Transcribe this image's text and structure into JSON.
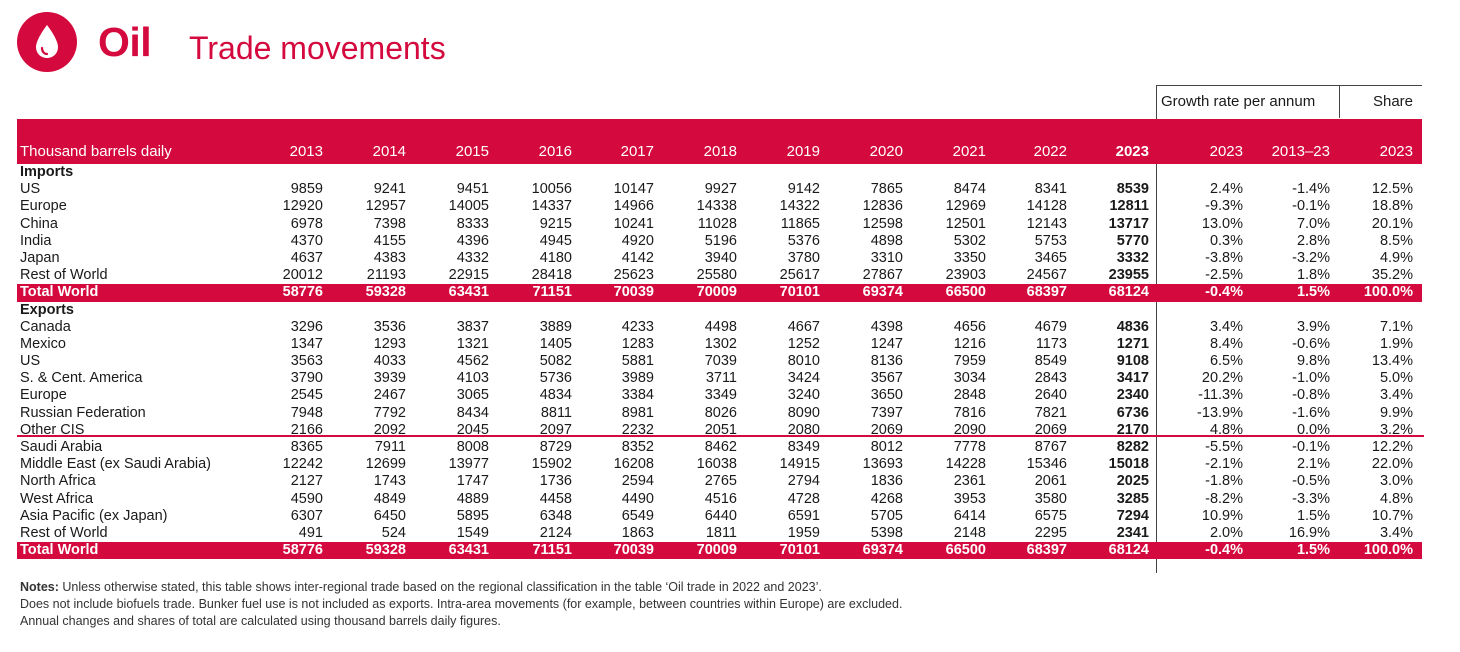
{
  "header": {
    "title": "Oil",
    "subtitle": "Trade movements",
    "logo_icon": "oil-drop-icon",
    "accent": "#d4093d"
  },
  "group_headers": {
    "growth": "Growth rate per annum",
    "share": "Share"
  },
  "columns": {
    "label": "Thousand barrels daily",
    "years": [
      "2013",
      "2014",
      "2015",
      "2016",
      "2017",
      "2018",
      "2019",
      "2020",
      "2021",
      "2022",
      "2023"
    ],
    "growth": [
      "2023",
      "2013–23"
    ],
    "share": [
      "2023"
    ]
  },
  "imports": {
    "title": "Imports",
    "rows": [
      {
        "name": "US",
        "values": [
          "9859",
          "9241",
          "9451",
          "10056",
          "10147",
          "9927",
          "9142",
          "7865",
          "8474",
          "8341",
          "8539"
        ],
        "g1": "2.4%",
        "g2": "-1.4%",
        "share": "12.5%"
      },
      {
        "name": "Europe",
        "values": [
          "12920",
          "12957",
          "14005",
          "14337",
          "14966",
          "14338",
          "14322",
          "12836",
          "12969",
          "14128",
          "12811"
        ],
        "g1": "-9.3%",
        "g2": "-0.1%",
        "share": "18.8%"
      },
      {
        "name": "China",
        "values": [
          "6978",
          "7398",
          "8333",
          "9215",
          "10241",
          "11028",
          "11865",
          "12598",
          "12501",
          "12143",
          "13717"
        ],
        "g1": "13.0%",
        "g2": "7.0%",
        "share": "20.1%"
      },
      {
        "name": "India",
        "values": [
          "4370",
          "4155",
          "4396",
          "4945",
          "4920",
          "5196",
          "5376",
          "4898",
          "5302",
          "5753",
          "5770"
        ],
        "g1": "0.3%",
        "g2": "2.8%",
        "share": "8.5%"
      },
      {
        "name": "Japan",
        "values": [
          "4637",
          "4383",
          "4332",
          "4180",
          "4142",
          "3940",
          "3780",
          "3310",
          "3350",
          "3465",
          "3332"
        ],
        "g1": "-3.8%",
        "g2": "-3.2%",
        "share": "4.9%"
      },
      {
        "name": "Rest of World",
        "values": [
          "20012",
          "21193",
          "22915",
          "28418",
          "25623",
          "25580",
          "25617",
          "27867",
          "23903",
          "24567",
          "23955"
        ],
        "g1": "-2.5%",
        "g2": "1.8%",
        "share": "35.2%"
      }
    ],
    "total": {
      "name": "Total World",
      "values": [
        "58776",
        "59328",
        "63431",
        "71151",
        "70039",
        "70009",
        "70101",
        "69374",
        "66500",
        "68397",
        "68124"
      ],
      "g1": "-0.4%",
      "g2": "1.5%",
      "share": "100.0%"
    }
  },
  "exports": {
    "title": "Exports",
    "rows": [
      {
        "name": "Canada",
        "values": [
          "3296",
          "3536",
          "3837",
          "3889",
          "4233",
          "4498",
          "4667",
          "4398",
          "4656",
          "4679",
          "4836"
        ],
        "g1": "3.4%",
        "g2": "3.9%",
        "share": "7.1%"
      },
      {
        "name": "Mexico",
        "values": [
          "1347",
          "1293",
          "1321",
          "1405",
          "1283",
          "1302",
          "1252",
          "1247",
          "1216",
          "1173",
          "1271"
        ],
        "g1": "8.4%",
        "g2": "-0.6%",
        "share": "1.9%"
      },
      {
        "name": "US",
        "values": [
          "3563",
          "4033",
          "4562",
          "5082",
          "5881",
          "7039",
          "8010",
          "8136",
          "7959",
          "8549",
          "9108"
        ],
        "g1": "6.5%",
        "g2": "9.8%",
        "share": "13.4%"
      },
      {
        "name": "S. & Cent. America",
        "values": [
          "3790",
          "3939",
          "4103",
          "5736",
          "3989",
          "3711",
          "3424",
          "3567",
          "3034",
          "2843",
          "3417"
        ],
        "g1": "20.2%",
        "g2": "-1.0%",
        "share": "5.0%"
      },
      {
        "name": "Europe",
        "values": [
          "2545",
          "2467",
          "3065",
          "4834",
          "3384",
          "3349",
          "3240",
          "3650",
          "2848",
          "2640",
          "2340"
        ],
        "g1": "-11.3%",
        "g2": "-0.8%",
        "share": "3.4%"
      },
      {
        "name": "Russian Federation",
        "values": [
          "7948",
          "7792",
          "8434",
          "8811",
          "8981",
          "8026",
          "8090",
          "7397",
          "7816",
          "7821",
          "6736"
        ],
        "g1": "-13.9%",
        "g2": "-1.6%",
        "share": "9.9%"
      },
      {
        "name": "Other CIS",
        "values": [
          "2166",
          "2092",
          "2045",
          "2097",
          "2232",
          "2051",
          "2080",
          "2069",
          "2090",
          "2069",
          "2170"
        ],
        "g1": "4.8%",
        "g2": "0.0%",
        "share": "3.2%"
      },
      {
        "name": "Saudi Arabia",
        "values": [
          "8365",
          "7911",
          "8008",
          "8729",
          "8352",
          "8462",
          "8349",
          "8012",
          "7778",
          "8767",
          "8282"
        ],
        "g1": "-5.5%",
        "g2": "-0.1%",
        "share": "12.2%"
      },
      {
        "name": "Middle East (ex Saudi Arabia)",
        "values": [
          "12242",
          "12699",
          "13977",
          "15902",
          "16208",
          "16038",
          "14915",
          "13693",
          "14228",
          "15346",
          "15018"
        ],
        "g1": "-2.1%",
        "g2": "2.1%",
        "share": "22.0%"
      },
      {
        "name": "North Africa",
        "values": [
          "2127",
          "1743",
          "1747",
          "1736",
          "2594",
          "2765",
          "2794",
          "1836",
          "2361",
          "2061",
          "2025"
        ],
        "g1": "-1.8%",
        "g2": "-0.5%",
        "share": "3.0%"
      },
      {
        "name": "West Africa",
        "values": [
          "4590",
          "4849",
          "4889",
          "4458",
          "4490",
          "4516",
          "4728",
          "4268",
          "3953",
          "3580",
          "3285"
        ],
        "g1": "-8.2%",
        "g2": "-3.3%",
        "share": "4.8%"
      },
      {
        "name": "Asia Pacific (ex Japan)",
        "values": [
          "6307",
          "6450",
          "5895",
          "6348",
          "6549",
          "6440",
          "6591",
          "5705",
          "6414",
          "6575",
          "7294"
        ],
        "g1": "10.9%",
        "g2": "1.5%",
        "share": "10.7%"
      },
      {
        "name": "Rest of World",
        "values": [
          "491",
          "524",
          "1549",
          "2124",
          "1863",
          "1811",
          "1959",
          "5398",
          "2148",
          "2295",
          "2341"
        ],
        "g1": "2.0%",
        "g2": "16.9%",
        "share": "3.4%"
      }
    ],
    "total": {
      "name": "Total World",
      "values": [
        "58776",
        "59328",
        "63431",
        "71151",
        "70039",
        "70009",
        "70101",
        "69374",
        "66500",
        "68397",
        "68124"
      ],
      "g1": "-0.4%",
      "g2": "1.5%",
      "share": "100.0%"
    }
  },
  "notes": {
    "label": "Notes:",
    "line1": " Unless otherwise stated, this table shows inter-regional trade based on the regional classification in the table ‘Oil trade in 2022 and 2023’.",
    "line2": "Does not include biofuels trade. Bunker fuel use is not included as exports. Intra-area movements (for example, between countries within Europe) are excluded.",
    "line3": "Annual changes and shares of total are calculated using thousand barrels daily figures."
  }
}
